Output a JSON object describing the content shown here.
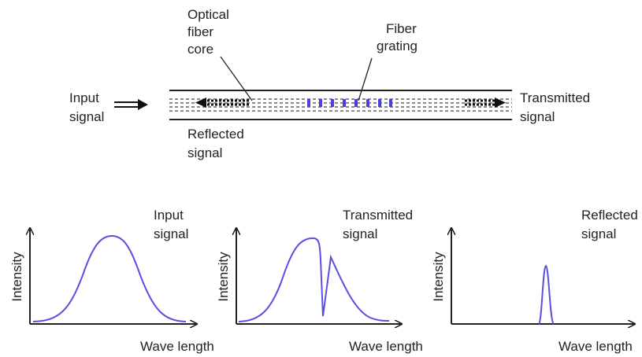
{
  "fiber": {
    "core_label": [
      "Optical",
      "fiber",
      "core"
    ],
    "grating_label": [
      "Fiber",
      "grating"
    ],
    "input_label": [
      "Input",
      "signal"
    ],
    "transmitted_label": [
      "Transmitted",
      "signal"
    ],
    "reflected_label": [
      "Reflected",
      "signal"
    ]
  },
  "plots": [
    {
      "title": [
        "Input",
        "signal"
      ],
      "y_label": "Intensity",
      "x_label": "Wave length"
    },
    {
      "title": [
        "Transmitted",
        "signal"
      ],
      "y_label": "Intensity",
      "x_label": "Wave length"
    },
    {
      "title": [
        "Reflected",
        "signal"
      ],
      "y_label": "Intensity",
      "x_label": "Wave length"
    }
  ]
}
